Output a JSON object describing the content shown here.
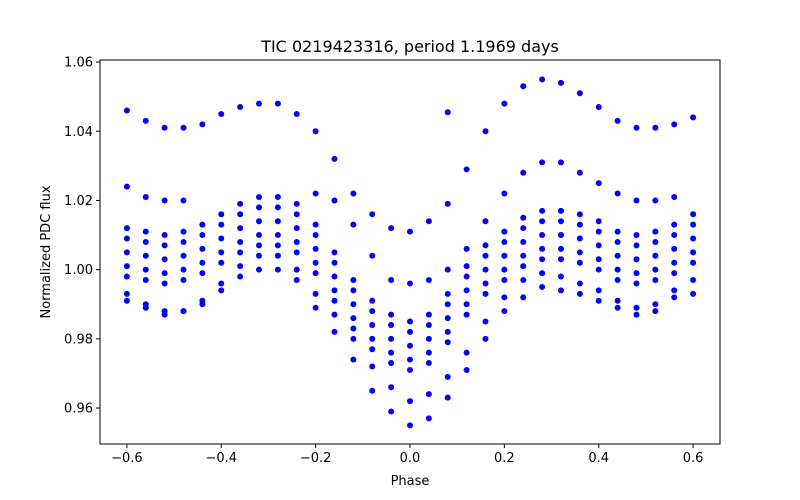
{
  "chart_data": {
    "type": "scatter",
    "title": "TIC 0219423316, period 1.1969 days",
    "xlabel": "Phase",
    "ylabel": "Normalized PDC flux",
    "xlim": [
      -0.657,
      0.657
    ],
    "ylim": [
      0.9496,
      1.0606
    ],
    "grid": false,
    "legend": "none",
    "marker_color": "#0000ff",
    "x_ticks": [
      -0.6,
      -0.4,
      -0.2,
      0.0,
      0.2,
      0.4,
      0.6
    ],
    "x_tick_labels": [
      "−0.6",
      "−0.4",
      "−0.2",
      "0.0",
      "0.2",
      "0.4",
      "0.6"
    ],
    "y_ticks": [
      0.96,
      0.98,
      1.0,
      1.02,
      1.04,
      1.06
    ],
    "y_tick_labels": [
      "0.96",
      "0.98",
      "1.00",
      "1.02",
      "1.04",
      "1.06"
    ],
    "x": [
      -0.6,
      -0.56,
      -0.52,
      -0.48,
      -0.44,
      -0.4,
      -0.36,
      -0.32,
      -0.28,
      -0.24,
      -0.2,
      -0.16,
      -0.12,
      -0.08,
      -0.04,
      0,
      0.04,
      0.08,
      0.12,
      0.16,
      0.2,
      0.24,
      0.28,
      0.32,
      0.36,
      0.4,
      0.44,
      0.48,
      0.52,
      0.56,
      0.6
    ],
    "series": [
      {
        "y": [
          1.046,
          1.043,
          1.041,
          1.041,
          1.042,
          1.045,
          1.047,
          1.048,
          1.048,
          1.045,
          1.04,
          1.032,
          1.022,
          1.016,
          1.012,
          1.011,
          1.014,
          1.019,
          1.029,
          1.04,
          1.048,
          1.053,
          1.055,
          1.054,
          1.051,
          1.047,
          1.043,
          1.041,
          1.041,
          1.042,
          1.044
        ]
      },
      {
        "y": [
          1.024,
          1.021,
          1.02,
          1.02,
          null,
          null,
          null,
          null,
          null,
          null,
          1.022,
          1.02,
          1.013,
          1.004,
          0.997,
          0.996,
          0.997,
          1.0,
          1.006,
          1.014,
          1.022,
          1.028,
          1.031,
          1.031,
          1.028,
          1.025,
          1.022,
          1.02,
          1.02,
          1.021,
          null
        ]
      },
      {
        "y": [
          1.012,
          1.011,
          1.01,
          1.011,
          1.013,
          1.016,
          1.019,
          1.021,
          1.021,
          1.019,
          1.013,
          1.005,
          0.997,
          0.991,
          0.987,
          0.985,
          0.987,
          0.993,
          1.001,
          1.007,
          1.011,
          1.015,
          1.017,
          1.017,
          1.016,
          1.014,
          1.011,
          1.01,
          1.011,
          1.013,
          1.016
        ]
      },
      {
        "y": [
          1.009,
          1.008,
          1.007,
          1.008,
          1.01,
          1.013,
          1.016,
          1.018,
          1.018,
          1.016,
          1.01,
          1.002,
          0.994,
          0.988,
          0.984,
          0.982,
          0.984,
          0.99,
          0.998,
          1.004,
          1.008,
          1.012,
          1.014,
          1.014,
          1.013,
          1.011,
          1.008,
          1.007,
          1.008,
          1.01,
          1.013
        ]
      },
      {
        "y": [
          1.005,
          1.004,
          1.003,
          1.004,
          1.006,
          1.009,
          1.012,
          1.014,
          1.014,
          1.012,
          1.006,
          0.998,
          0.99,
          0.984,
          0.98,
          0.978,
          0.98,
          0.986,
          0.994,
          1.0,
          1.004,
          1.008,
          1.01,
          1.01,
          1.009,
          1.007,
          1.004,
          1.003,
          1.004,
          1.006,
          1.009
        ]
      },
      {
        "y": [
          1.001,
          1.0,
          0.999,
          1.0,
          1.002,
          1.005,
          1.008,
          1.01,
          1.01,
          1.008,
          1.002,
          0.994,
          0.986,
          0.98,
          0.976,
          0.974,
          0.976,
          0.982,
          0.99,
          0.996,
          1.0,
          1.004,
          1.006,
          1.006,
          1.005,
          1.003,
          1.0,
          0.999,
          1.0,
          1.002,
          1.005
        ]
      },
      {
        "y": [
          0.998,
          0.997,
          0.996,
          0.997,
          0.999,
          1.002,
          1.005,
          1.007,
          1.007,
          1.005,
          0.999,
          0.991,
          0.983,
          0.977,
          0.973,
          0.971,
          0.973,
          0.979,
          0.987,
          0.993,
          0.997,
          1.001,
          1.003,
          1.003,
          1.002,
          1.0,
          0.997,
          0.996,
          0.997,
          0.999,
          1.002
        ]
      },
      {
        "y": [
          0.991,
          0.989,
          0.987,
          0.988,
          0.991,
          0.996,
          1.001,
          1.004,
          1.004,
          1.0,
          0.993,
          0.987,
          0.98,
          0.972,
          0.966,
          0.962,
          0.964,
          0.969,
          0.976,
          0.985,
          0.992,
          0.997,
          0.999,
          0.998,
          0.996,
          0.994,
          0.991,
          0.989,
          0.99,
          0.994,
          0.997
        ]
      },
      {
        "y": [
          0.993,
          0.99,
          0.988,
          0.988,
          0.99,
          0.994,
          0.998,
          1.0,
          1.0,
          0.997,
          0.989,
          0.982,
          0.974,
          0.965,
          0.959,
          0.955,
          0.957,
          0.963,
          0.971,
          0.98,
          0.988,
          0.992,
          0.995,
          0.994,
          0.993,
          0.991,
          0.989,
          0.987,
          0.988,
          0.992,
          0.993
        ]
      }
    ],
    "extra_points": [
      [
        0.08,
        1.0455
      ]
    ]
  }
}
